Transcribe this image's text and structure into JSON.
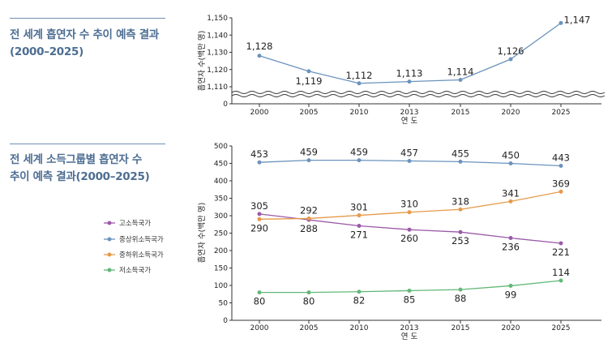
{
  "panel1": {
    "heading": "전 세계 흡연자 수 추이 예측 결과\n(2000–2025)"
  },
  "panel2": {
    "heading": "전 세계 소득그룹별 흡연자 수\n추이 예측 결과(2000–2025)"
  },
  "chart_data": [
    {
      "type": "line",
      "title": "전 세계 흡연자 수 추이 예측 결과 (2000–2025)",
      "xlabel": "연 도",
      "ylabel": "흡연자 수(백만 명)",
      "categories": [
        "2000",
        "2005",
        "2010",
        "2013",
        "2015",
        "2020",
        "2025"
      ],
      "series": [
        {
          "values": [
            1128,
            1119,
            1112,
            1113,
            1114,
            1126,
            1147
          ],
          "color": "#6b93bd"
        }
      ],
      "labels": [
        "1,128",
        "1,119",
        "1,112",
        "1,113",
        "1,114",
        "1,126",
        "1,147"
      ],
      "yticks": [
        "1,150",
        "1,140",
        "1,130",
        "1,120",
        "1,110",
        "0"
      ],
      "ylim": [
        1110,
        1150
      ],
      "axis_break": true,
      "grid": false
    },
    {
      "type": "line",
      "title": "전 세계 소득그룹별 흡연자 수 추이 예측 결과(2000–2025)",
      "xlabel": "연 도",
      "ylabel": "흡연자 수(백만 명)",
      "categories": [
        "2000",
        "2005",
        "2010",
        "2013",
        "2015",
        "2020",
        "2025"
      ],
      "yticks": [
        "500",
        "450",
        "400",
        "350",
        "300",
        "250",
        "200",
        "150",
        "100",
        "50",
        "0"
      ],
      "ylim": [
        0,
        500
      ],
      "legend_position": "left",
      "grid": false,
      "series": [
        {
          "name": "고소득국가",
          "color": "#9b59a8",
          "values": [
            305,
            288,
            271,
            260,
            253,
            236,
            221
          ]
        },
        {
          "name": "중상위소득국가",
          "color": "#6b93bd",
          "values": [
            453,
            459,
            459,
            457,
            455,
            450,
            443
          ]
        },
        {
          "name": "중하위소득국가",
          "color": "#e59a4a",
          "values": [
            290,
            292,
            301,
            310,
            318,
            341,
            369
          ]
        },
        {
          "name": "저소득국가",
          "color": "#62b878",
          "values": [
            80,
            80,
            82,
            85,
            88,
            99,
            114
          ]
        }
      ]
    }
  ]
}
